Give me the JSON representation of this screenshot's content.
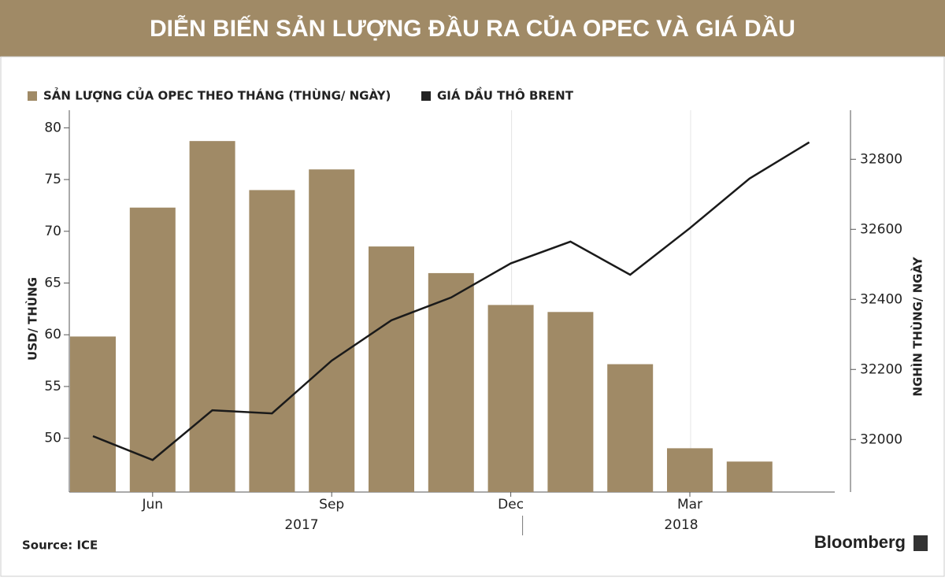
{
  "chart_data": {
    "type": "bar_line",
    "title": "DIỄN BIẾN SẢN LƯỢNG ĐẦU RA CỦA OPEC VÀ GIÁ DẦU",
    "categories": [
      null,
      "Jun",
      null,
      null,
      "Sep",
      null,
      null,
      "Dec",
      null,
      null,
      "Mar",
      null,
      null
    ],
    "year_labels": [
      "2017",
      "2018"
    ],
    "series": [
      {
        "name": "SẢN LƯỢNG CỦA OPEC THEO THÁNG (THÙNG/ NGÀY)",
        "type": "bar",
        "axis": "y2",
        "color": "#a08a66",
        "values": [
          32294,
          32662,
          32852,
          32712,
          32771,
          32551,
          32475,
          32384,
          32364,
          32215,
          31975,
          31937,
          null
        ]
      },
      {
        "name": "GIÁ DẦU THÔ BRENT",
        "type": "line",
        "axis": "y",
        "color": "#1a1a1a",
        "values": [
          50.2,
          47.9,
          52.7,
          52.4,
          57.5,
          61.4,
          63.6,
          66.9,
          69.0,
          65.8,
          70.3,
          75.1,
          78.6
        ]
      }
    ],
    "y_label": "USD/ THÙNG",
    "y2_label": "NGHÌN THÙNG/ NGÀY",
    "ylim": [
      44.8,
      81.7
    ],
    "yticks": [
      50,
      55,
      60,
      65,
      70,
      75,
      80
    ],
    "y2lim": [
      31850,
      32940
    ],
    "y2ticks": [
      32000,
      32200,
      32400,
      32600,
      32800
    ],
    "source": "Source: ICE",
    "brand": "Bloomberg"
  }
}
